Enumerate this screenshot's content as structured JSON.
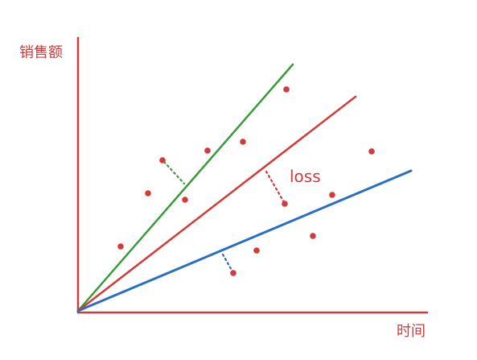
{
  "labels": {
    "y_axis": "销售额",
    "x_axis": "时间",
    "loss": "loss"
  },
  "colors": {
    "axis": "#d33a3a",
    "green_line": "#3a9a3a",
    "red_line": "#d33a3a",
    "blue_line": "#2a6fc0",
    "points": "#d33a3a",
    "label": "#d33a3a"
  },
  "fit_lines": [
    {
      "name": "green",
      "color_key": "green_line"
    },
    {
      "name": "red",
      "color_key": "red_line"
    },
    {
      "name": "blue",
      "color_key": "blue_line"
    }
  ]
}
